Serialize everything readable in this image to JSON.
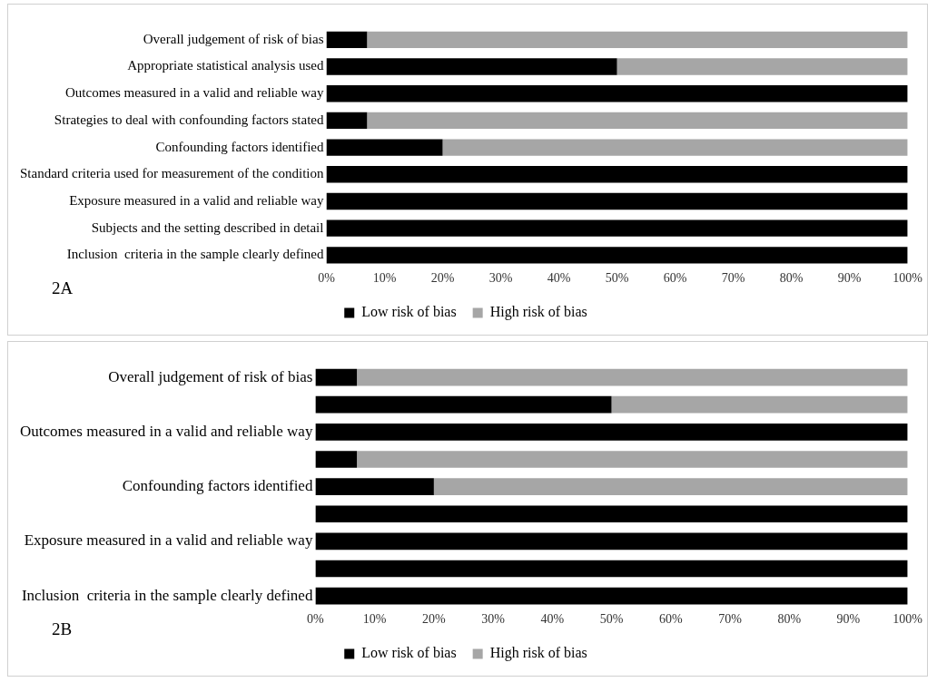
{
  "chart_data": [
    {
      "type": "bar",
      "orientation": "horizontal",
      "stacked": true,
      "legend": "bottom",
      "annotations": [
        "2A"
      ],
      "categories": [
        "Overall judgement of risk of bias",
        "Appropriate statistical analysis used",
        "Outcomes measured in a valid and reliable way",
        "Strategies to deal with confounding factors stated",
        "Confounding factors identified",
        "Standard criteria used for measurement of the condition",
        "Exposure measured in a valid and reliable way",
        "Subjects and the setting described in detail",
        "Inclusion  criteria in the sample clearly defined"
      ],
      "series": [
        {
          "name": "Low risk of bias",
          "color": "#000000",
          "values": [
            7,
            50,
            100,
            7,
            20,
            100,
            100,
            100,
            100
          ]
        },
        {
          "name": "High risk of bias",
          "color": "#a6a6a6",
          "values": [
            93,
            50,
            0,
            93,
            80,
            0,
            0,
            0,
            0
          ]
        }
      ],
      "xlim": [
        0,
        100
      ],
      "xticks": [
        {
          "value": 0,
          "label": "0%"
        },
        {
          "value": 10,
          "label": "10%"
        },
        {
          "value": 20,
          "label": "20%"
        },
        {
          "value": 30,
          "label": "30%"
        },
        {
          "value": 40,
          "label": "40%"
        },
        {
          "value": 50,
          "label": "50%"
        },
        {
          "value": 60,
          "label": "60%"
        },
        {
          "value": 70,
          "label": "70%"
        },
        {
          "value": 80,
          "label": "80%"
        },
        {
          "value": 90,
          "label": "90%"
        },
        {
          "value": 100,
          "label": "100%"
        }
      ]
    },
    {
      "type": "bar",
      "orientation": "horizontal",
      "stacked": true,
      "legend": "bottom",
      "annotations": [
        "2B"
      ],
      "categories": [
        "Overall judgement of risk of bias",
        null,
        "Outcomes measured in a valid and reliable way",
        null,
        "Confounding factors identified",
        null,
        "Exposure measured in a valid and reliable way",
        null,
        "Inclusion  criteria in the sample clearly defined"
      ],
      "series": [
        {
          "name": "Low risk of bias",
          "color": "#000000",
          "values": [
            7,
            50,
            100,
            7,
            20,
            100,
            100,
            100,
            100
          ]
        },
        {
          "name": "High risk of bias",
          "color": "#a6a6a6",
          "values": [
            93,
            50,
            0,
            93,
            80,
            0,
            0,
            0,
            0
          ]
        }
      ],
      "xlim": [
        0,
        100
      ],
      "xticks": [
        {
          "value": 0,
          "label": "0%"
        },
        {
          "value": 10,
          "label": "10%"
        },
        {
          "value": 20,
          "label": "20%"
        },
        {
          "value": 30,
          "label": "30%"
        },
        {
          "value": 40,
          "label": "40%"
        },
        {
          "value": 50,
          "label": "50%"
        },
        {
          "value": 60,
          "label": "60%"
        },
        {
          "value": 70,
          "label": "70%"
        },
        {
          "value": 80,
          "label": "80%"
        },
        {
          "value": 90,
          "label": "90%"
        },
        {
          "value": 100,
          "label": "100%"
        }
      ]
    }
  ]
}
